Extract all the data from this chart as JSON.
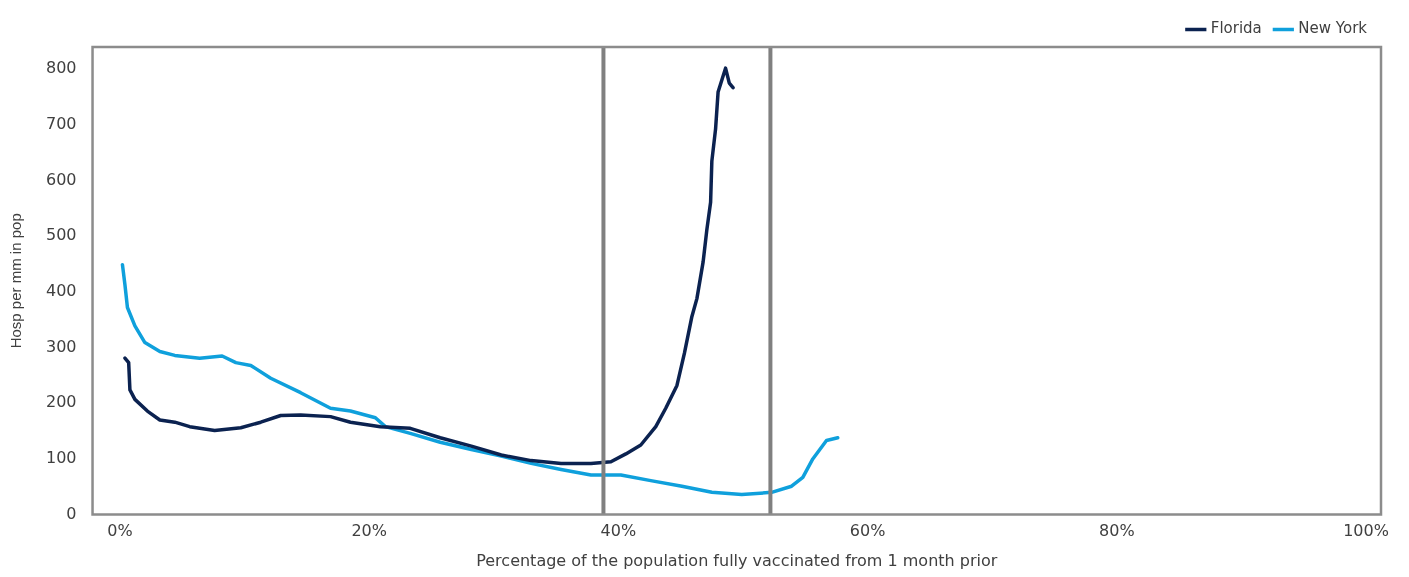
{
  "chart_data": {
    "type": "line",
    "xlabel": "Percentage of the population fully vaccinated from 1 month prior",
    "ylabel": "Hosp per mm in pop",
    "xlim": [
      -2.2,
      101.2
    ],
    "ylim": [
      0,
      840
    ],
    "xticks": [
      {
        "value": 0,
        "label": "0%"
      },
      {
        "value": 20,
        "label": "20%"
      },
      {
        "value": 40,
        "label": "40%"
      },
      {
        "value": 60,
        "label": "60%"
      },
      {
        "value": 80,
        "label": "80%"
      },
      {
        "value": 100,
        "label": "100%"
      }
    ],
    "yticks": [
      0,
      100,
      200,
      300,
      400,
      500,
      600,
      700,
      800
    ],
    "grid": false,
    "legend": "top right",
    "marker": "none",
    "line_style": "solid",
    "ref_lines": [
      {
        "axis": "x",
        "value": 38.8,
        "color": "#808080"
      },
      {
        "axis": "x",
        "value": 52.2,
        "color": "#808080"
      }
    ],
    "series": [
      {
        "name": "Florida",
        "color": "#0b2250",
        "x": [
          0.4,
          0.7,
          0.8,
          1.2,
          2.2,
          3.2,
          4.4,
          5.6,
          7.6,
          9.7,
          11.3,
          12.9,
          14.5,
          16.9,
          18.5,
          20.9,
          23.3,
          25.7,
          28.2,
          30.6,
          33.0,
          35.4,
          37.8,
          39.4,
          40.6,
          41.8,
          43.0,
          43.8,
          44.7,
          45.3,
          45.9,
          46.3,
          46.8,
          47.1,
          47.4,
          47.5,
          47.8,
          48.0,
          48.6,
          48.9,
          49.2
        ],
        "values": [
          281,
          273,
          224,
          207,
          186,
          170,
          166,
          158,
          151,
          156,
          166,
          178,
          179,
          176,
          166,
          158,
          155,
          138,
          123,
          107,
          97,
          92,
          92,
          95,
          109,
          125,
          158,
          191,
          232,
          290,
          356,
          388,
          454,
          512,
          561,
          635,
          693,
          759,
          802,
          775,
          767
        ]
      },
      {
        "name": "New York",
        "color": "#0fa0dc",
        "x": [
          0.2,
          0.4,
          0.6,
          1.2,
          2.0,
          3.2,
          4.4,
          6.4,
          8.2,
          9.3,
          10.5,
          12.1,
          14.5,
          16.9,
          18.5,
          20.5,
          21.3,
          23.3,
          25.7,
          28.2,
          30.6,
          33.0,
          35.4,
          37.8,
          40.2,
          42.6,
          45.1,
          47.5,
          49.9,
          52.3,
          53.9,
          54.8,
          55.6,
          56.7,
          57.6
        ],
        "values": [
          449,
          413,
          372,
          339,
          309,
          293,
          286,
          281,
          285,
          273,
          268,
          245,
          219,
          191,
          186,
          174,
          158,
          146,
          130,
          117,
          105,
          92,
          81,
          71,
          71,
          61,
          51,
          40,
          36,
          40,
          51,
          67,
          100,
          133,
          138
        ]
      }
    ]
  }
}
